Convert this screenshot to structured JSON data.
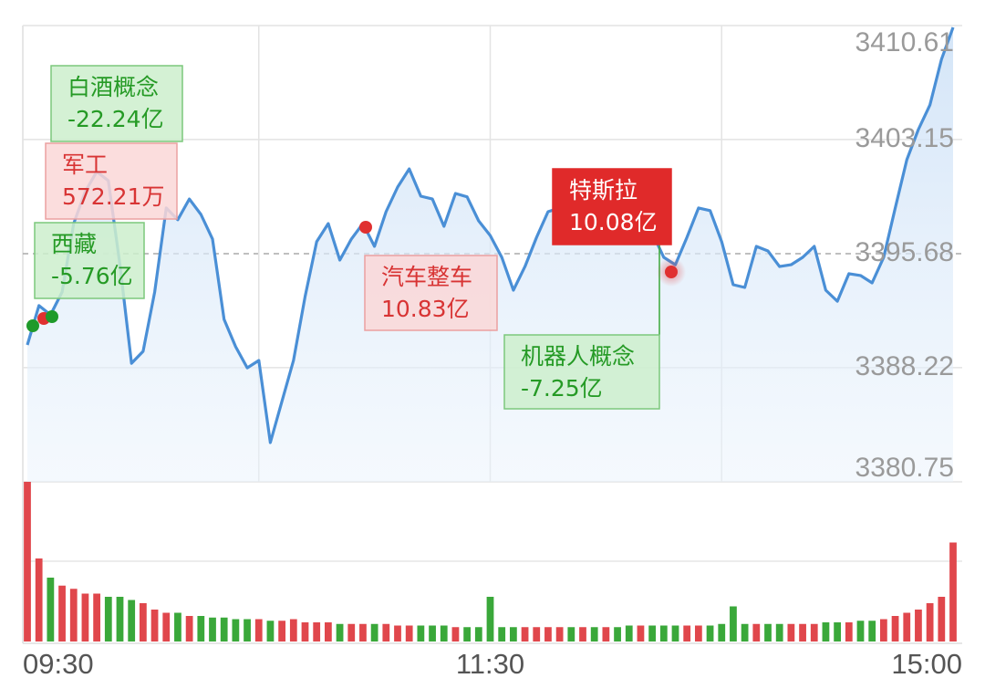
{
  "chart_data": {
    "type": "intraday",
    "x": [
      0,
      3,
      6,
      9,
      12,
      15,
      18,
      21,
      24,
      27,
      30,
      33,
      36,
      39,
      42,
      45,
      48,
      51,
      54,
      57,
      60,
      63,
      66,
      69,
      72,
      75,
      78,
      81,
      84,
      87,
      90,
      93,
      96,
      99,
      102,
      105,
      108,
      111,
      114,
      117,
      120,
      123,
      126,
      129,
      132,
      135,
      138,
      141,
      144,
      147,
      150,
      153,
      156,
      159,
      162,
      165,
      168,
      171,
      174,
      177,
      180,
      183,
      186,
      189,
      192,
      195,
      198,
      201,
      204,
      207,
      210,
      213,
      216,
      219,
      222,
      225,
      228,
      231,
      234,
      237,
      240
    ],
    "price": {
      "color": "#4a8fd6",
      "values": [
        3389.71,
        3392.28,
        3391.68,
        3393.17,
        3397.65,
        3399.74,
        3401.05,
        3400.46,
        3394.96,
        3388.51,
        3389.29,
        3393.17,
        3398.67,
        3397.9,
        3399.26,
        3398.25,
        3396.64,
        3391.38,
        3389.59,
        3388.21,
        3388.69,
        3383.32,
        3386.01,
        3388.69,
        3392.87,
        3396.46,
        3397.65,
        3395.26,
        3396.64,
        3397.65,
        3396.16,
        3398.43,
        3400.04,
        3401.23,
        3399.44,
        3399.26,
        3397.47,
        3399.62,
        3399.4,
        3397.83,
        3396.87,
        3395.44,
        3393.29,
        3394.84,
        3396.75,
        3398.43,
        3398.67,
        3397.35,
        3398.07,
        3396.87,
        3397.95,
        3396.64,
        3396.4,
        3397.83,
        3397.05,
        3395.44,
        3394.96,
        3396.75,
        3398.67,
        3398.5,
        3396.46,
        3393.65,
        3393.47,
        3396.16,
        3395.86,
        3394.84,
        3394.96,
        3395.44,
        3396.16,
        3393.29,
        3392.57,
        3394.37,
        3394.25,
        3393.77,
        3395.44,
        3398.67,
        3401.83,
        3403.8,
        3405.41,
        3408.4,
        3410.49
      ]
    },
    "volume": {
      "up_color": "#e0474c",
      "down_color": "#3aa83a",
      "ylim": [
        0,
        100
      ],
      "values": [
        100,
        52,
        40,
        35,
        33,
        30,
        30,
        28,
        28,
        26,
        24,
        20,
        18,
        18,
        16,
        16,
        15,
        15,
        14,
        14,
        14,
        13,
        13,
        14,
        12,
        12,
        12,
        11,
        11,
        11,
        11,
        11,
        10,
        10,
        10,
        10,
        10,
        9,
        9,
        9,
        28,
        9,
        9,
        9,
        9,
        9,
        9,
        9,
        9,
        9,
        9,
        9,
        10,
        10,
        10,
        10,
        10,
        10,
        10,
        10,
        11,
        22,
        11,
        11,
        11,
        11,
        11,
        11,
        11,
        12,
        12,
        12,
        13,
        13,
        14,
        16,
        18,
        20,
        24,
        28,
        62
      ]
    },
    "xlim": [
      0,
      240
    ],
    "xticks": [
      {
        "value": 0,
        "label": "09:30"
      },
      {
        "value": 120,
        "label": "11:30"
      },
      {
        "value": 240,
        "label": "15:00"
      }
    ],
    "xgrid": [
      60,
      120,
      180
    ],
    "ylim": [
      3380.75,
      3410.61
    ],
    "yticks": [
      3410.61,
      3403.15,
      3395.68,
      3388.22,
      3380.75
    ],
    "grid": true,
    "annotations": [
      {
        "name": "白酒概念",
        "amount": "-22.24亿",
        "style": "green"
      },
      {
        "name": "军工",
        "amount": "572.21万",
        "style": "red"
      },
      {
        "name": "西藏",
        "amount": "-5.76亿",
        "style": "green"
      },
      {
        "name": "汽车整车",
        "amount": "10.83亿",
        "style": "red"
      },
      {
        "name": "机器人概念",
        "amount": "-7.25亿",
        "style": "green"
      },
      {
        "name": "特斯拉",
        "amount": "10.08亿",
        "style": "red-solid"
      }
    ]
  }
}
